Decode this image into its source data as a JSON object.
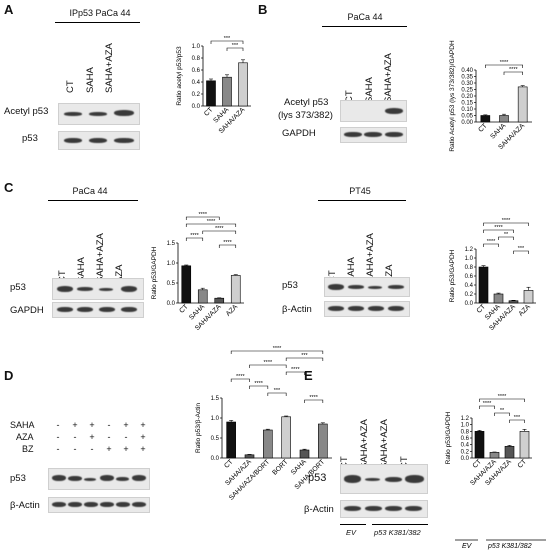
{
  "panels": {
    "A": {
      "letter": "A",
      "header": "IPp53   PaCa 44",
      "lanes": [
        "CT",
        "SAHA",
        "SAHA+AZA"
      ],
      "rows": [
        "Acetyl p53",
        "p53"
      ]
    },
    "B": {
      "letter": "B",
      "header": "PaCa 44",
      "lanes": [
        "CT",
        "SAHA",
        "SAHA+AZA"
      ],
      "rows": [
        "Acetyl p53",
        "(lys 373/382)",
        "GAPDH"
      ]
    },
    "C1": {
      "letter": "C",
      "header": "PaCa 44",
      "lanes": [
        "CT",
        "SAHA",
        "SAHA+AZA",
        "AZA"
      ],
      "rows": [
        "p53",
        "GAPDH"
      ]
    },
    "C2": {
      "header": "PT45",
      "lanes": [
        "CT",
        "SAHA",
        "SAHA+AZA",
        "AZA"
      ],
      "rows": [
        "p53",
        "β-Actin"
      ]
    },
    "D": {
      "letter": "D",
      "treatments": [
        "SAHA",
        "AZA",
        "BZ"
      ],
      "signs": [
        [
          "-",
          "+",
          "+",
          "-",
          "+",
          "+"
        ],
        [
          "-",
          "-",
          "+",
          "-",
          "-",
          "+"
        ],
        [
          "-",
          "-",
          "-",
          "+",
          "+",
          "+"
        ]
      ],
      "rows": [
        "p53",
        "β-Actin"
      ]
    },
    "E": {
      "letter": "E",
      "lanes": [
        "CT",
        "SAHA+AZA",
        "SAHA+AZA",
        "CT"
      ],
      "rows": [
        "p53",
        "β-Actin"
      ],
      "groups": [
        "EV",
        "p53 K381/382"
      ]
    }
  },
  "chart_data": [
    {
      "id": "A",
      "type": "bar",
      "categories": [
        "CT",
        "SAHA",
        "SAHA/AZA"
      ],
      "values": [
        0.42,
        0.48,
        0.72
      ],
      "errors": [
        0.03,
        0.04,
        0.05
      ],
      "colors": [
        "#111111",
        "#888888",
        "#cfcfcf"
      ],
      "ylabel": "Ratio acetyl p53/p53",
      "ylim": [
        0,
        1.0
      ],
      "yticks": [
        "0.0",
        "0.2",
        "0.4",
        "0.6",
        "0.8",
        "1.0"
      ],
      "significance": [
        {
          "from": 0,
          "to": 2,
          "label": "***"
        },
        {
          "from": 1,
          "to": 2,
          "label": "***"
        }
      ]
    },
    {
      "id": "B",
      "type": "bar",
      "categories": [
        "CT",
        "SAHA",
        "SAHA/AZA"
      ],
      "values": [
        0.05,
        0.05,
        0.27
      ],
      "errors": [
        0.005,
        0.01,
        0.01
      ],
      "colors": [
        "#111111",
        "#888888",
        "#cfcfcf"
      ],
      "ylabel": "Ratio Acetyl p53 (lys 373/382)/GAPDH",
      "ylim": [
        0,
        0.4
      ],
      "yticks": [
        "0.00",
        "0.05",
        "0.10",
        "0.15",
        "0.20",
        "0.25",
        "0.30",
        "0.35",
        "0.40"
      ],
      "significance": [
        {
          "from": 0,
          "to": 2,
          "label": "****"
        },
        {
          "from": 1,
          "to": 2,
          "label": "****"
        }
      ]
    },
    {
      "id": "C1",
      "type": "bar",
      "categories": [
        "CT",
        "SAHA",
        "SAHA/AZA",
        "AZA"
      ],
      "values": [
        0.93,
        0.33,
        0.12,
        0.69
      ],
      "errors": [
        0.02,
        0.04,
        0.01,
        0.02
      ],
      "colors": [
        "#111111",
        "#888888",
        "#555555",
        "#cfcfcf"
      ],
      "ylabel": "Ratio p53/GAPDH",
      "ylim": [
        0,
        1.5
      ],
      "yticks": [
        "0.0",
        "0.5",
        "1.0",
        "1.5"
      ],
      "significance": [
        {
          "from": 0,
          "to": 2,
          "label": "****"
        },
        {
          "from": 0,
          "to": 3,
          "label": "****"
        },
        {
          "from": 1,
          "to": 3,
          "label": "****"
        },
        {
          "from": 0,
          "to": 1,
          "label": "****"
        },
        {
          "from": 2,
          "to": 3,
          "label": "****"
        }
      ]
    },
    {
      "id": "C2",
      "type": "bar",
      "categories": [
        "CT",
        "SAHA",
        "SAHA/AZA",
        "AZA"
      ],
      "values": [
        0.8,
        0.2,
        0.05,
        0.28
      ],
      "errors": [
        0.03,
        0.02,
        0.01,
        0.07
      ],
      "colors": [
        "#111111",
        "#888888",
        "#555555",
        "#cfcfcf"
      ],
      "ylabel": "Ratio p53/GAPDH",
      "ylim": [
        0,
        1.2
      ],
      "yticks": [
        "0.0",
        "0.2",
        "0.4",
        "0.6",
        "0.8",
        "1.0",
        "1.2"
      ],
      "significance": [
        {
          "from": 0,
          "to": 3,
          "label": "****"
        },
        {
          "from": 0,
          "to": 2,
          "label": "****"
        },
        {
          "from": 1,
          "to": 2,
          "label": "**"
        },
        {
          "from": 0,
          "to": 1,
          "label": "****"
        },
        {
          "from": 2,
          "to": 3,
          "label": "***"
        }
      ]
    },
    {
      "id": "D",
      "type": "bar",
      "categories": [
        "CT",
        "SAHA/AZA",
        "SAHA/AZA/BORT",
        "BORT",
        "SAHA",
        "SAHA/BORT"
      ],
      "values": [
        0.9,
        0.08,
        0.7,
        1.03,
        0.2,
        0.85
      ],
      "errors": [
        0.04,
        0.01,
        0.02,
        0.02,
        0.02,
        0.03
      ],
      "colors": [
        "#111111",
        "#555555",
        "#888888",
        "#cfcfcf",
        "#555555",
        "#888888"
      ],
      "ylabel": "Ratio p53/β-Actin",
      "ylim": [
        0,
        1.5
      ],
      "yticks": [
        "0.0",
        "0.5",
        "1.0",
        "1.5"
      ],
      "significance": [
        {
          "from": 0,
          "to": 5,
          "label": "****"
        },
        {
          "from": 3,
          "to": 5,
          "label": "***"
        },
        {
          "from": 1,
          "to": 3,
          "label": "****"
        },
        {
          "from": 3,
          "to": 4,
          "label": "****"
        },
        {
          "from": 0,
          "to": 1,
          "label": "****"
        },
        {
          "from": 1,
          "to": 2,
          "label": "****"
        },
        {
          "from": 2,
          "to": 3,
          "label": "***"
        },
        {
          "from": 4,
          "to": 5,
          "label": "****"
        }
      ]
    },
    {
      "id": "E",
      "type": "bar",
      "categories": [
        "CT",
        "SAHA/AZA",
        "SAHA/AZA",
        "CT"
      ],
      "values": [
        0.8,
        0.17,
        0.35,
        0.8
      ],
      "errors": [
        0.03,
        0.01,
        0.03,
        0.06
      ],
      "colors": [
        "#111111",
        "#888888",
        "#555555",
        "#cfcfcf"
      ],
      "ylabel": "Ratio p53/GAPDH",
      "ylim": [
        0,
        1.2
      ],
      "yticks": [
        "0.0",
        "0.2",
        "0.4",
        "0.6",
        "0.8",
        "1.0",
        "1.2"
      ],
      "groups": [
        "EV",
        "p53 K381/382"
      ],
      "significance": [
        {
          "from": 0,
          "to": 3,
          "label": "****"
        },
        {
          "from": 0,
          "to": 1,
          "label": "****"
        },
        {
          "from": 1,
          "to": 2,
          "label": "**"
        },
        {
          "from": 2,
          "to": 3,
          "label": "***"
        }
      ]
    }
  ]
}
